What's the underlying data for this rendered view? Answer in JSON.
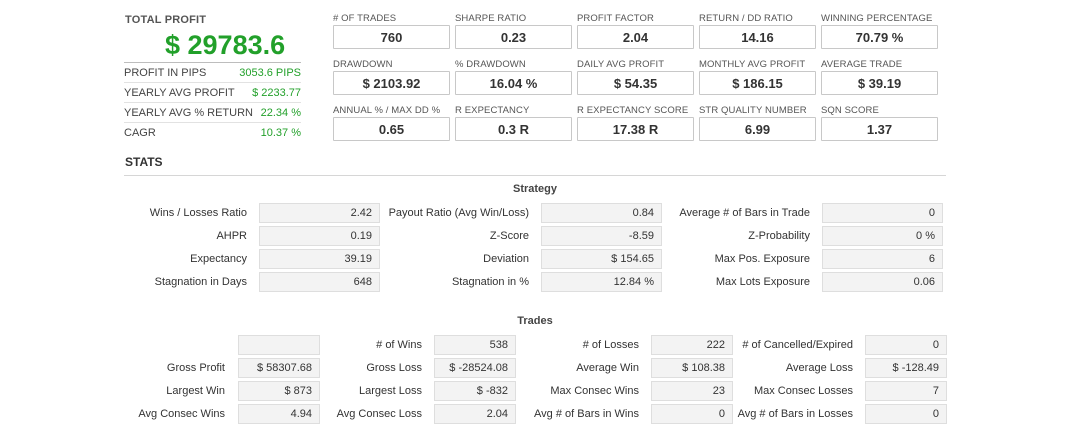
{
  "summary": {
    "total_profit_label": "TOTAL PROFIT",
    "total_profit_value": "$ 29783.6",
    "rows": [
      {
        "label": "PROFIT IN PIPS",
        "value": "3053.6 PIPS"
      },
      {
        "label": "YEARLY AVG PROFIT",
        "value": "$ 2233.77"
      },
      {
        "label": "YEARLY AVG % RETURN",
        "value": "22.34 %"
      },
      {
        "label": "CAGR",
        "value": "10.37 %"
      }
    ]
  },
  "metrics": [
    {
      "label": "# OF TRADES",
      "value": "760"
    },
    {
      "label": "SHARPE RATIO",
      "value": "0.23"
    },
    {
      "label": "PROFIT FACTOR",
      "value": "2.04"
    },
    {
      "label": "RETURN / DD RATIO",
      "value": "14.16"
    },
    {
      "label": "WINNING PERCENTAGE",
      "value": "70.79 %"
    },
    {
      "label": "DRAWDOWN",
      "value": "$ 2103.92"
    },
    {
      "label": "% DRAWDOWN",
      "value": "16.04 %"
    },
    {
      "label": "DAILY AVG PROFIT",
      "value": "$ 54.35"
    },
    {
      "label": "MONTHLY AVG PROFIT",
      "value": "$ 186.15"
    },
    {
      "label": "AVERAGE TRADE",
      "value": "$ 39.19"
    },
    {
      "label": "ANNUAL % / MAX DD %",
      "value": "0.65"
    },
    {
      "label": "R EXPECTANCY",
      "value": "0.3 R"
    },
    {
      "label": "R EXPECTANCY SCORE",
      "value": "17.38 R"
    },
    {
      "label": "STR QUALITY NUMBER",
      "value": "6.99"
    },
    {
      "label": "SQN SCORE",
      "value": "1.37"
    }
  ],
  "stats_title": "STATS",
  "strategy": {
    "title": "Strategy",
    "cells": [
      {
        "label": "Wins / Losses Ratio",
        "value": "2.42"
      },
      {
        "label": "Payout Ratio (Avg Win/Loss)",
        "value": "0.84"
      },
      {
        "label": "Average # of Bars in Trade",
        "value": "0"
      },
      {
        "label": "AHPR",
        "value": "0.19"
      },
      {
        "label": "Z-Score",
        "value": "-8.59"
      },
      {
        "label": "Z-Probability",
        "value": "0 %"
      },
      {
        "label": "Expectancy",
        "value": "39.19"
      },
      {
        "label": "Deviation",
        "value": "$ 154.65"
      },
      {
        "label": "Max Pos. Exposure",
        "value": "6"
      },
      {
        "label": "Stagnation in Days",
        "value": "648"
      },
      {
        "label": "Stagnation in %",
        "value": "12.84 %"
      },
      {
        "label": "Max Lots Exposure",
        "value": "0.06"
      }
    ]
  },
  "trades": {
    "title": "Trades",
    "cells": [
      {
        "label": "",
        "value": ""
      },
      {
        "label": "# of Wins",
        "value": "538"
      },
      {
        "label": "# of Losses",
        "value": "222"
      },
      {
        "label": "# of Cancelled/Expired",
        "value": "0"
      },
      {
        "label": "Gross Profit",
        "value": "$ 58307.68"
      },
      {
        "label": "Gross Loss",
        "value": "$ -28524.08"
      },
      {
        "label": "Average Win",
        "value": "$ 108.38"
      },
      {
        "label": "Average Loss",
        "value": "$ -128.49"
      },
      {
        "label": "Largest Win",
        "value": "$ 873"
      },
      {
        "label": "Largest Loss",
        "value": "$ -832"
      },
      {
        "label": "Max Consec Wins",
        "value": "23"
      },
      {
        "label": "Max Consec Losses",
        "value": "7"
      },
      {
        "label": "Avg Consec Wins",
        "value": "4.94"
      },
      {
        "label": "Avg Consec Loss",
        "value": "2.04"
      },
      {
        "label": "Avg # of Bars in Wins",
        "value": "0"
      },
      {
        "label": "Avg # of Bars in Losses",
        "value": "0"
      }
    ]
  },
  "colors": {
    "profit_green": "#22a02a"
  }
}
